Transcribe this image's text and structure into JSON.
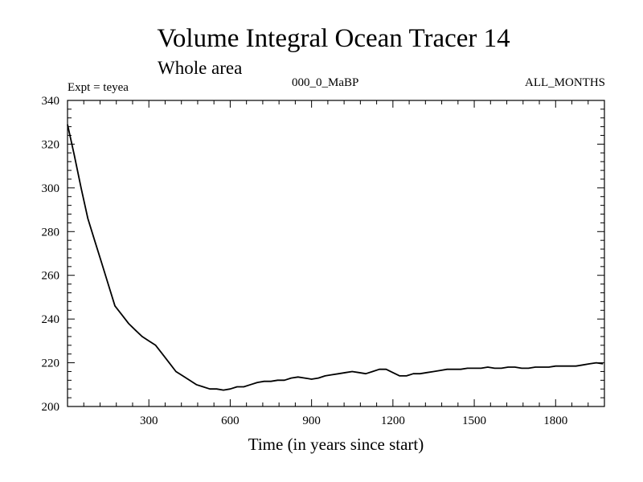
{
  "header": {
    "title": "Volume Integral Ocean Tracer 14",
    "subtitle": "Whole area",
    "experiment": "Expt = teyea",
    "period": "000_0_MaBP",
    "months": "ALL_MONTHS"
  },
  "chart_data": {
    "type": "line",
    "title": "Volume Integral Ocean Tracer 14",
    "subtitle": "Whole area",
    "xlabel": "Time (in years since start)",
    "ylabel": "",
    "xlim": [
      0,
      1980
    ],
    "ylim": [
      200,
      340
    ],
    "x_ticks": [
      300,
      600,
      900,
      1200,
      1500,
      1800
    ],
    "y_ticks": [
      200,
      220,
      240,
      260,
      280,
      300,
      320,
      340
    ],
    "grid": false,
    "line_color": "#000000",
    "series": [
      {
        "name": "Tracer 14",
        "x": [
          0,
          25,
          50,
          75,
          100,
          125,
          150,
          175,
          200,
          225,
          250,
          275,
          300,
          325,
          350,
          375,
          400,
          425,
          450,
          475,
          500,
          525,
          550,
          575,
          600,
          625,
          650,
          675,
          700,
          725,
          750,
          775,
          800,
          825,
          850,
          875,
          900,
          925,
          950,
          975,
          1000,
          1025,
          1050,
          1075,
          1100,
          1125,
          1150,
          1175,
          1200,
          1225,
          1250,
          1275,
          1300,
          1325,
          1350,
          1375,
          1400,
          1425,
          1450,
          1475,
          1500,
          1525,
          1550,
          1575,
          1600,
          1625,
          1650,
          1675,
          1700,
          1725,
          1750,
          1775,
          1800,
          1825,
          1850,
          1875,
          1900,
          1925,
          1950,
          1975
        ],
        "values": [
          329,
          315,
          300,
          286,
          276,
          266,
          256,
          246,
          242,
          238,
          235,
          232,
          230,
          228,
          224,
          220,
          216,
          214,
          212,
          210,
          209,
          208,
          208,
          207.5,
          208,
          209,
          209,
          210,
          211,
          211.5,
          211.5,
          212,
          212,
          213,
          213.5,
          213,
          212.5,
          213,
          214,
          214.5,
          215,
          215.5,
          216,
          215.5,
          215,
          216,
          217,
          217,
          215.5,
          214,
          214,
          215,
          215,
          215.5,
          216,
          216.5,
          217,
          217,
          217,
          217.5,
          217.5,
          217.5,
          218,
          217.5,
          217.5,
          218,
          218,
          217.5,
          217.5,
          218,
          218,
          218,
          218.5,
          218.5,
          218.5,
          218.5,
          219,
          219.5,
          220,
          219.5
        ]
      }
    ]
  }
}
